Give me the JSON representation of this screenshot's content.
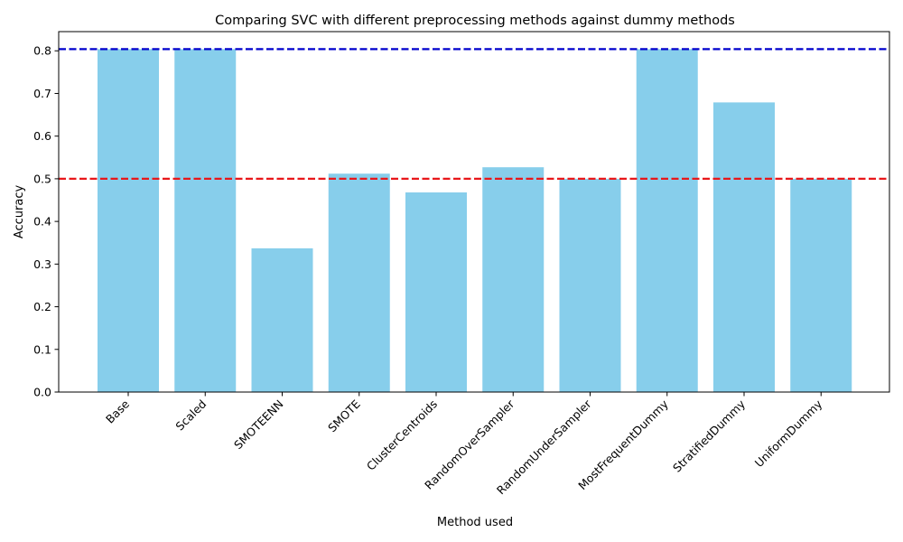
{
  "chart_data": {
    "type": "bar",
    "title": "Comparing SVC with different preprocessing methods against dummy methods",
    "xlabel": "Method used",
    "ylabel": "Accuracy",
    "categories": [
      "Base",
      "Scaled",
      "SMOTEENN",
      "SMOTE",
      "ClusterCentroids",
      "RandomOverSampler",
      "RandomUnderSampler",
      "MostFrequentDummy",
      "StratifiedDummy",
      "UniformDummy"
    ],
    "values": [
      0.804,
      0.804,
      0.337,
      0.512,
      0.468,
      0.527,
      0.5,
      0.804,
      0.679,
      0.5
    ],
    "ylim": [
      0,
      0.845
    ],
    "yticks": [
      "0.0",
      "0.1",
      "0.2",
      "0.3",
      "0.4",
      "0.5",
      "0.6",
      "0.7",
      "0.8"
    ],
    "grid": false,
    "bar_color": "#87CEEB",
    "reference_lines": [
      {
        "y": 0.804,
        "color": "#0000CC",
        "style": "dashed"
      },
      {
        "y": 0.5,
        "color": "#E8171A",
        "style": "dashed"
      }
    ]
  }
}
